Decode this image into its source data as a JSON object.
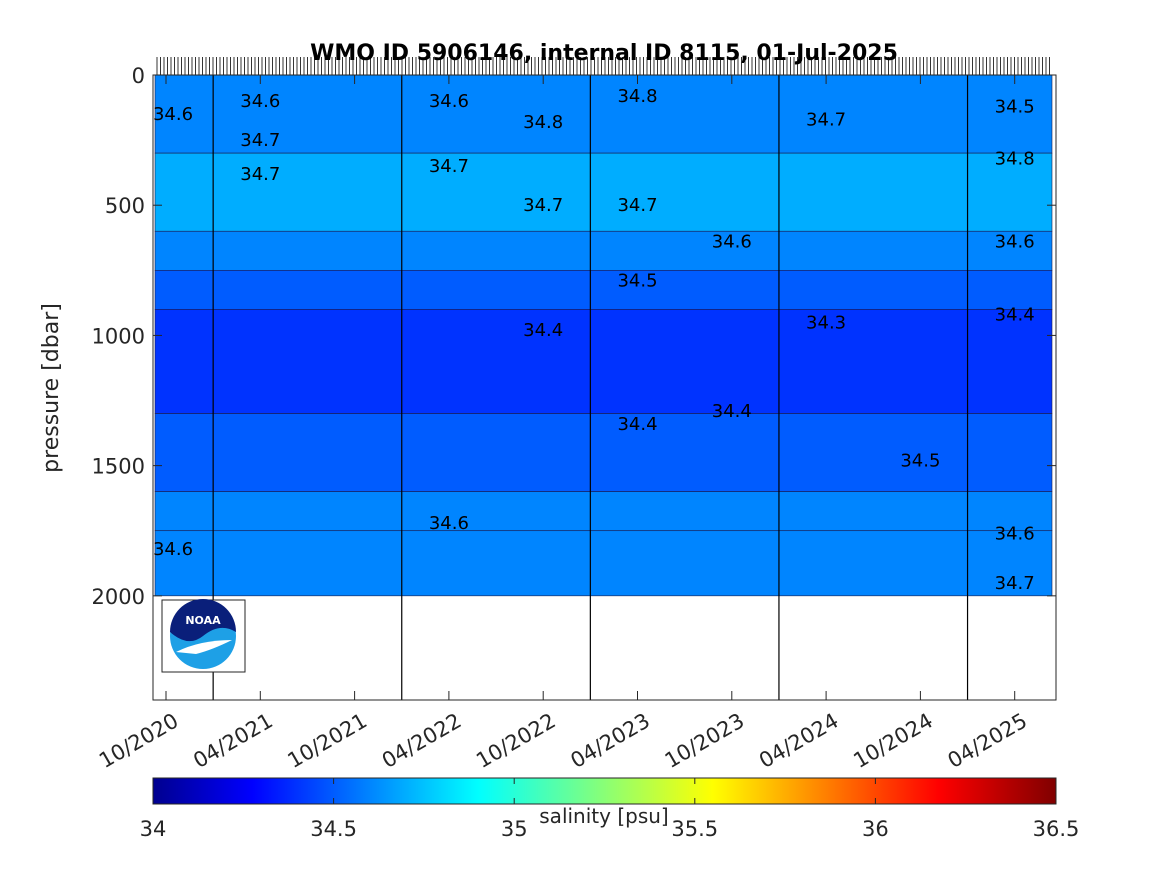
{
  "chart_data": {
    "type": "heatmap",
    "title": "WMO ID 5906146, internal ID 8115, 01-Jul-2025",
    "xlabel": "",
    "ylabel": "pressure [dbar]",
    "ylim": [
      0,
      2400
    ],
    "y_reversed": true,
    "x_tick_labels": [
      "10/2020",
      "04/2021",
      "10/2021",
      "04/2022",
      "10/2022",
      "04/2023",
      "10/2023",
      "04/2024",
      "10/2024",
      "04/2025"
    ],
    "y_ticks": [
      0,
      500,
      1000,
      1500,
      2000
    ],
    "max_profile_pressure": 2000,
    "salinity_bands": [
      {
        "pressure_top": 0,
        "pressure_bottom": 300,
        "salinity": 34.6
      },
      {
        "pressure_top": 300,
        "pressure_bottom": 600,
        "salinity": 34.7
      },
      {
        "pressure_top": 600,
        "pressure_bottom": 750,
        "salinity": 34.6
      },
      {
        "pressure_top": 750,
        "pressure_bottom": 900,
        "salinity": 34.5
      },
      {
        "pressure_top": 900,
        "pressure_bottom": 1300,
        "salinity": 34.4
      },
      {
        "pressure_top": 1300,
        "pressure_bottom": 1600,
        "salinity": 34.5
      },
      {
        "pressure_top": 1600,
        "pressure_bottom": 1750,
        "salinity": 34.6
      },
      {
        "pressure_top": 1750,
        "pressure_bottom": 2000,
        "salinity": 34.6
      }
    ],
    "contour_labels": [
      {
        "text": "34.6",
        "date": "10/2020",
        "pressure": 150
      },
      {
        "text": "34.6",
        "date": "04/2021",
        "pressure": 100
      },
      {
        "text": "34.7",
        "date": "04/2021",
        "pressure": 250
      },
      {
        "text": "34.7",
        "date": "04/2021",
        "pressure": 380
      },
      {
        "text": "34.6",
        "date": "04/2022",
        "pressure": 100
      },
      {
        "text": "34.7",
        "date": "04/2022",
        "pressure": 350
      },
      {
        "text": "34.8",
        "date": "10/2022",
        "pressure": 180
      },
      {
        "text": "34.7",
        "date": "10/2022",
        "pressure": 500
      },
      {
        "text": "34.8",
        "date": "04/2023",
        "pressure": 80
      },
      {
        "text": "34.7",
        "date": "04/2023",
        "pressure": 500
      },
      {
        "text": "34.6",
        "date": "10/2023",
        "pressure": 640
      },
      {
        "text": "34.5",
        "date": "04/2023",
        "pressure": 790
      },
      {
        "text": "34.4",
        "date": "10/2022",
        "pressure": 980
      },
      {
        "text": "34.3",
        "date": "04/2024",
        "pressure": 950
      },
      {
        "text": "34.7",
        "date": "04/2024",
        "pressure": 170
      },
      {
        "text": "34.4",
        "date": "04/2025",
        "pressure": 920
      },
      {
        "text": "34.6",
        "date": "04/2025",
        "pressure": 640
      },
      {
        "text": "34.8",
        "date": "04/2025",
        "pressure": 320
      },
      {
        "text": "34.5",
        "date": "04/2025",
        "pressure": 120
      },
      {
        "text": "34.4",
        "date": "10/2023",
        "pressure": 1290
      },
      {
        "text": "34.4",
        "date": "04/2023",
        "pressure": 1340
      },
      {
        "text": "34.5",
        "date": "10/2024",
        "pressure": 1480
      },
      {
        "text": "34.6",
        "date": "04/2022",
        "pressure": 1720
      },
      {
        "text": "34.6",
        "date": "10/2020",
        "pressure": 1820
      },
      {
        "text": "34.6",
        "date": "04/2025",
        "pressure": 1760
      },
      {
        "text": "34.7",
        "date": "04/2025",
        "pressure": 1950
      }
    ],
    "colorbar": {
      "label": "salinity [psu]",
      "min": 34,
      "max": 36.5,
      "tick_labels": [
        "34",
        "34.5",
        "35",
        "35.5",
        "36",
        "36.5"
      ],
      "colormap": "jet"
    },
    "logo_text": "NOAA"
  }
}
